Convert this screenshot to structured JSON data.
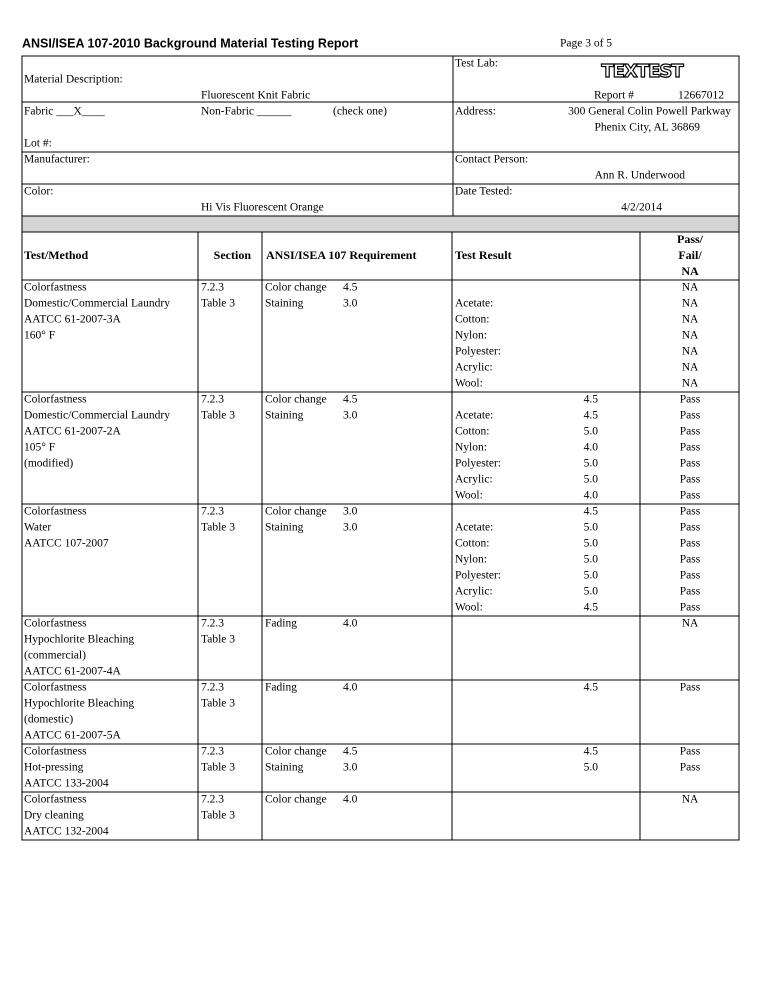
{
  "header": {
    "title": "ANSI/ISEA 107-2010 Background Material Testing Report",
    "page": "Page 3 of  5"
  },
  "info": {
    "material_label": "Material Description:",
    "material": "Fluorescent Knit Fabric",
    "test_lab_label": "Test Lab:",
    "logo": "TEXTEST",
    "report_label": "Report #",
    "report_number": "12667012",
    "fabric": "Fabric ___X____",
    "non_fabric": "Non-Fabric ______",
    "check_one": "(check one)",
    "lot_label": "Lot #:",
    "address_label": "Address:",
    "address_line1": "300 General Colin Powell Parkway",
    "address_line2": "Phenix City, AL  36869",
    "manufacturer_label": "Manufacturer:",
    "contact_label": "Contact Person:",
    "contact": "Ann R. Underwood",
    "color_label": "Color:",
    "color": "Hi Vis Fluorescent Orange",
    "date_label": "Date Tested:",
    "date": "4/2/2014"
  },
  "table": {
    "columns": {
      "method": "Test/Method",
      "section": "Section",
      "requirement": "ANSI/ISEA 107 Requirement",
      "result": "Test Result",
      "pass": [
        "Pass/",
        "Fail/",
        "NA"
      ]
    },
    "tests": [
      {
        "rows": [
          {
            "method": "Colorfastness",
            "section": "7.2.3",
            "requirement": "Color change",
            "level": "4.5",
            "pass": "NA"
          },
          {
            "method": "Domestic/Commercial Laundry",
            "section": "Table 3",
            "requirement": "Staining",
            "level": "3.0",
            "material": "Acetate:",
            "pass": "NA"
          },
          {
            "method": "AATCC 61-2007-3A",
            "material": "Cotton:",
            "pass": "NA"
          },
          {
            "method": "160° F",
            "material": "Nylon:",
            "pass": "NA"
          },
          {
            "material": "Polyester:",
            "pass": "NA"
          },
          {
            "material": "Acrylic:",
            "pass": "NA"
          },
          {
            "material": "Wool:",
            "pass": "NA"
          }
        ]
      },
      {
        "rows": [
          {
            "method": "Colorfastness",
            "section": "7.2.3",
            "requirement": "Color change",
            "level": "4.5",
            "result": "4.5",
            "pass": "Pass"
          },
          {
            "method": "Domestic/Commercial Laundry",
            "section": "Table 3",
            "requirement": "Staining",
            "level": "3.0",
            "material": "Acetate:",
            "result": "4.5",
            "pass": "Pass"
          },
          {
            "method": "AATCC 61-2007-2A",
            "material": "Cotton:",
            "result": "5.0",
            "pass": "Pass"
          },
          {
            "method": "105° F",
            "material": "Nylon:",
            "result": "4.0",
            "pass": "Pass"
          },
          {
            "method": "(modified)",
            "material": "Polyester:",
            "result": "5.0",
            "pass": "Pass"
          },
          {
            "material": "Acrylic:",
            "result": "5.0",
            "pass": "Pass"
          },
          {
            "material": "Wool:",
            "result": "4.0",
            "pass": "Pass"
          }
        ]
      },
      {
        "rows": [
          {
            "method": "Colorfastness",
            "section": "7.2.3",
            "requirement": "Color change",
            "level": "3.0",
            "result": "4.5",
            "pass": "Pass"
          },
          {
            "method": "Water",
            "section": "Table 3",
            "requirement": "Staining",
            "level": "3.0",
            "material": "Acetate:",
            "result": "5.0",
            "pass": "Pass"
          },
          {
            "method": "AATCC 107-2007",
            "material": "Cotton:",
            "result": "5.0",
            "pass": "Pass"
          },
          {
            "material": "Nylon:",
            "result": "5.0",
            "pass": "Pass"
          },
          {
            "material": "Polyester:",
            "result": "5.0",
            "pass": "Pass"
          },
          {
            "material": "Acrylic:",
            "result": "5.0",
            "pass": "Pass"
          },
          {
            "material": "Wool:",
            "result": "4.5",
            "pass": "Pass"
          }
        ]
      },
      {
        "rows": [
          {
            "method": "Colorfastness",
            "section": "7.2.3",
            "requirement": "Fading",
            "level": "4.0",
            "pass": "NA"
          },
          {
            "method": "Hypochlorite Bleaching",
            "section": "Table 3"
          },
          {
            "method": "(commercial)"
          },
          {
            "method": "AATCC 61-2007-4A"
          }
        ]
      },
      {
        "rows": [
          {
            "method": "Colorfastness",
            "section": "7.2.3",
            "requirement": "Fading",
            "level": "4.0",
            "result": "4.5",
            "pass": "Pass"
          },
          {
            "method": "Hypochlorite Bleaching",
            "section": "Table 3"
          },
          {
            "method": "(domestic)"
          },
          {
            "method": "AATCC 61-2007-5A"
          }
        ]
      },
      {
        "rows": [
          {
            "method": "Colorfastness",
            "section": "7.2.3",
            "requirement": "Color change",
            "level": "4.5",
            "result": "4.5",
            "pass": "Pass"
          },
          {
            "method": "Hot-pressing",
            "section": "Table 3",
            "requirement": "Staining",
            "level": "3.0",
            "result": "5.0",
            "pass": "Pass"
          },
          {
            "method": "AATCC 133-2004"
          }
        ]
      },
      {
        "rows": [
          {
            "method": "Colorfastness",
            "section": "7.2.3",
            "requirement": "Color change",
            "level": "4.0",
            "pass": "NA"
          },
          {
            "method": "Dry cleaning",
            "section": "Table 3"
          },
          {
            "method": "AATCC 132-2004"
          }
        ]
      }
    ]
  }
}
